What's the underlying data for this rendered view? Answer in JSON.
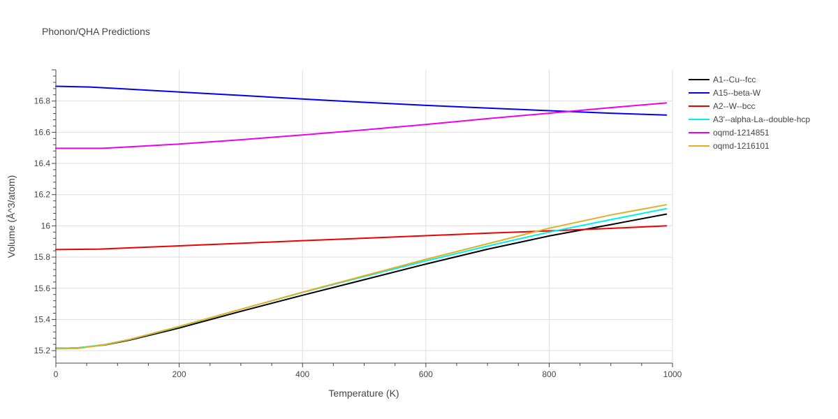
{
  "chart_data": {
    "type": "line",
    "title": "Phonon/QHA Predictions",
    "xlabel": "Temperature (K)",
    "ylabel": "Volume (Å^3/atom)",
    "xlim": [
      0,
      1000
    ],
    "ylim": [
      15.12,
      17.0
    ],
    "x_ticks": [
      0,
      200,
      400,
      600,
      800,
      1000
    ],
    "x_tick_labels": [
      "0",
      "200",
      "400",
      "600",
      "800",
      "1000"
    ],
    "y_ticks": [
      15.2,
      15.4,
      15.6,
      15.8,
      16.0,
      16.2,
      16.4,
      16.6,
      16.8
    ],
    "y_tick_labels": [
      "15.2",
      "15.4",
      "15.6",
      "15.8",
      "16",
      "16.2",
      "16.4",
      "16.6",
      "16.8"
    ],
    "grid": true,
    "legend_position": "right",
    "series": [
      {
        "name": "A1--Cu--fcc",
        "color": "#000000",
        "x": [
          0,
          35,
          80,
          120,
          200,
          300,
          400,
          500,
          600,
          700,
          800,
          900,
          990
        ],
        "y": [
          15.215,
          15.217,
          15.237,
          15.268,
          15.345,
          15.452,
          15.555,
          15.655,
          15.755,
          15.85,
          15.935,
          16.008,
          16.075
        ]
      },
      {
        "name": "A15--beta-W",
        "color": "#0000ee",
        "x": [
          0,
          55,
          100,
          200,
          300,
          400,
          500,
          600,
          700,
          800,
          900,
          990
        ],
        "y": [
          16.895,
          16.89,
          16.88,
          16.858,
          16.836,
          16.813,
          16.792,
          16.772,
          16.755,
          16.738,
          16.722,
          16.71
        ]
      },
      {
        "name": "A2--W--bcc",
        "color": "#ee0000",
        "x": [
          0,
          70,
          100,
          200,
          300,
          400,
          500,
          600,
          700,
          800,
          900,
          990
        ],
        "y": [
          15.848,
          15.851,
          15.856,
          15.872,
          15.888,
          15.905,
          15.921,
          15.937,
          15.953,
          15.968,
          15.984,
          16.0
        ]
      },
      {
        "name": "A3'--alpha-La--double-hcp",
        "color": "#00eeee",
        "x": [
          0,
          35,
          80,
          120,
          200,
          300,
          400,
          500,
          600,
          700,
          800,
          900,
          990
        ],
        "y": [
          15.215,
          15.217,
          15.24,
          15.272,
          15.353,
          15.465,
          15.573,
          15.675,
          15.775,
          15.87,
          15.96,
          16.04,
          16.11
        ]
      },
      {
        "name": "oqmd-1214851",
        "color": "#ee00ee",
        "x": [
          0,
          75,
          100,
          200,
          300,
          400,
          500,
          600,
          700,
          800,
          900,
          990
        ],
        "y": [
          16.497,
          16.497,
          16.502,
          16.524,
          16.552,
          16.583,
          16.615,
          16.65,
          16.687,
          16.722,
          16.758,
          16.788
        ]
      },
      {
        "name": "oqmd-1216101",
        "color": "#e0b020",
        "x": [
          0,
          35,
          80,
          120,
          200,
          300,
          400,
          500,
          600,
          700,
          800,
          900,
          990
        ],
        "y": [
          15.212,
          15.214,
          15.238,
          15.272,
          15.355,
          15.465,
          15.575,
          15.68,
          15.785,
          15.885,
          15.985,
          16.07,
          16.135
        ]
      }
    ]
  }
}
